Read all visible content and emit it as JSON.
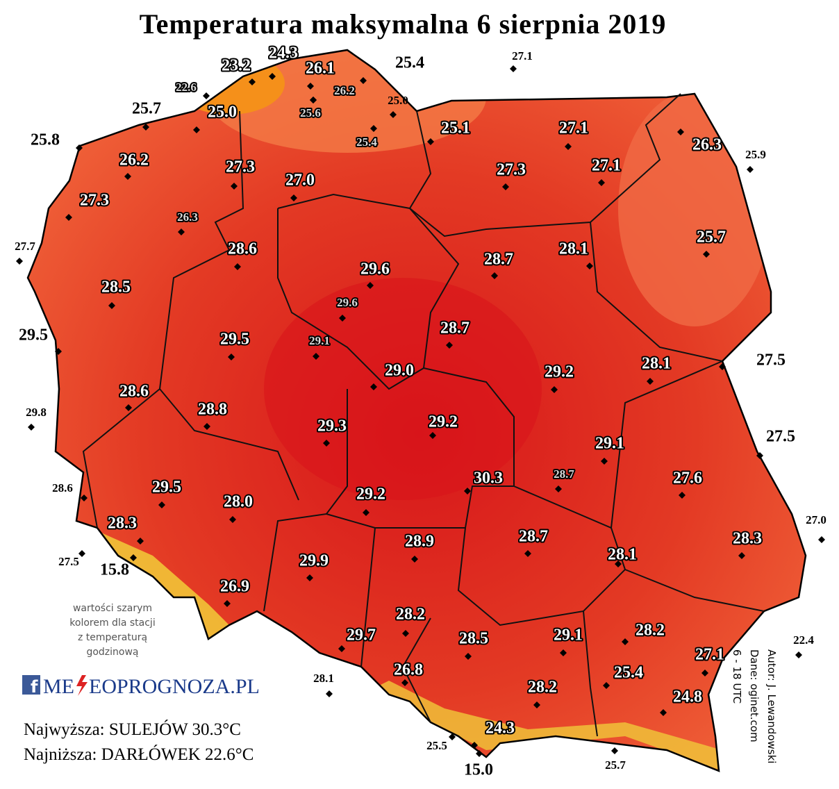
{
  "title": "Temperatura maksymalna 6 sierpnia 2019",
  "stations": [
    {
      "temp": "23.2",
      "color": "#ffffff"
    },
    {
      "temp": "24.3",
      "color": "#ffffff"
    },
    {
      "temp": "22.6",
      "color": "#d9d9d9"
    },
    {
      "temp": "25.0",
      "color": "#ffffff"
    },
    {
      "temp": "26.1",
      "color": "#ffffff"
    },
    {
      "temp": "26.2",
      "color": "#d9d9d9"
    },
    {
      "temp": "25.6",
      "color": "#d9d9d9"
    },
    {
      "temp": "25.4",
      "color": "#000000"
    },
    {
      "temp": "27.1",
      "color": "#000000"
    },
    {
      "temp": "25.0",
      "color": "#000000"
    },
    {
      "temp": "25.4",
      "color": "#d9d9d9"
    },
    {
      "temp": "25.7",
      "color": "#000000"
    },
    {
      "temp": "25.8",
      "color": "#000000"
    },
    {
      "temp": "26.2",
      "color": "#ffffff"
    },
    {
      "temp": "27.3",
      "color": "#ffffff"
    },
    {
      "temp": "27.0",
      "color": "#ffffff"
    },
    {
      "temp": "25.1",
      "color": "#ffffff"
    },
    {
      "temp": "27.1",
      "color": "#ffffff"
    },
    {
      "temp": "26.3",
      "color": "#ffffff"
    },
    {
      "temp": "25.9",
      "color": "#000000"
    },
    {
      "temp": "27.3",
      "color": "#ffffff"
    },
    {
      "temp": "27.1",
      "color": "#ffffff"
    },
    {
      "temp": "27.3",
      "color": "#ffffff"
    },
    {
      "temp": "26.3",
      "color": "#d9d9d9"
    },
    {
      "temp": "27.7",
      "color": "#000000"
    },
    {
      "temp": "28.6",
      "color": "#ffffff"
    },
    {
      "temp": "25.7",
      "color": "#ffffff"
    },
    {
      "temp": "29.6",
      "color": "#ffffff"
    },
    {
      "temp": "28.7",
      "color": "#ffffff"
    },
    {
      "temp": "28.1",
      "color": "#ffffff"
    },
    {
      "temp": "28.5",
      "color": "#ffffff"
    },
    {
      "temp": "29.6",
      "color": "#d9d9d9"
    },
    {
      "temp": "29.5",
      "color": "#000000"
    },
    {
      "temp": "29.5",
      "color": "#ffffff"
    },
    {
      "temp": "29.1",
      "color": "#d9d9d9"
    },
    {
      "temp": "28.7",
      "color": "#ffffff"
    },
    {
      "temp": "29.0",
      "color": "#ffffff"
    },
    {
      "temp": "29.2",
      "color": "#ffffff"
    },
    {
      "temp": "28.1",
      "color": "#ffffff"
    },
    {
      "temp": "27.5",
      "color": "#000000"
    },
    {
      "temp": "28.6",
      "color": "#ffffff"
    },
    {
      "temp": "29.8",
      "color": "#000000"
    },
    {
      "temp": "28.8",
      "color": "#ffffff"
    },
    {
      "temp": "29.3",
      "color": "#ffffff"
    },
    {
      "temp": "29.2",
      "color": "#ffffff"
    },
    {
      "temp": "27.5",
      "color": "#000000"
    },
    {
      "temp": "29.1",
      "color": "#ffffff"
    },
    {
      "temp": "28.7",
      "color": "#d9d9d9"
    },
    {
      "temp": "30.3",
      "color": "#ffffff"
    },
    {
      "temp": "28.6",
      "color": "#000000"
    },
    {
      "temp": "29.5",
      "color": "#ffffff"
    },
    {
      "temp": "28.0",
      "color": "#ffffff"
    },
    {
      "temp": "29.2",
      "color": "#ffffff"
    },
    {
      "temp": "27.6",
      "color": "#ffffff"
    },
    {
      "temp": "27.0",
      "color": "#000000"
    },
    {
      "temp": "28.3",
      "color": "#ffffff"
    },
    {
      "temp": "28.9",
      "color": "#ffffff"
    },
    {
      "temp": "28.7",
      "color": "#ffffff"
    },
    {
      "temp": "28.1",
      "color": "#ffffff"
    },
    {
      "temp": "28.3",
      "color": "#ffffff"
    },
    {
      "temp": "27.5",
      "color": "#000000"
    },
    {
      "temp": "15.8",
      "color": "#000000"
    },
    {
      "temp": "29.9",
      "color": "#ffffff"
    },
    {
      "temp": "26.9",
      "color": "#ffffff"
    },
    {
      "temp": "28.2",
      "color": "#ffffff"
    },
    {
      "temp": "29.7",
      "color": "#ffffff"
    },
    {
      "temp": "28.5",
      "color": "#ffffff"
    },
    {
      "temp": "29.1",
      "color": "#ffffff"
    },
    {
      "temp": "28.2",
      "color": "#ffffff"
    },
    {
      "temp": "22.4",
      "color": "#000000"
    },
    {
      "temp": "27.1",
      "color": "#ffffff"
    },
    {
      "temp": "26.8",
      "color": "#ffffff"
    },
    {
      "temp": "25.4",
      "color": "#ffffff"
    },
    {
      "temp": "28.1",
      "color": "#000000"
    },
    {
      "temp": "28.2",
      "color": "#ffffff"
    },
    {
      "temp": "24.8",
      "color": "#ffffff"
    },
    {
      "temp": "24.3",
      "color": "#ffffff"
    },
    {
      "temp": "25.5",
      "color": "#000000"
    },
    {
      "temp": "15.0",
      "color": "#000000"
    },
    {
      "temp": "25.7",
      "color": "#000000"
    }
  ],
  "note": [
    "wartości szarym",
    "kolorem dla stacji",
    "z temperaturą",
    "godzinową"
  ],
  "logo": {
    "left": "ME",
    "right": "EOPROGNOZA.PL"
  },
  "highest": "Najwyższa: SULEJÓW 30.3°C",
  "lowest": "Najniższa: DARŁÓWEK 22.6°C",
  "credits": [
    "Autor: J. Lewandowski",
    "Dane: oginet.com",
    "6 - 18 UTC"
  ]
}
